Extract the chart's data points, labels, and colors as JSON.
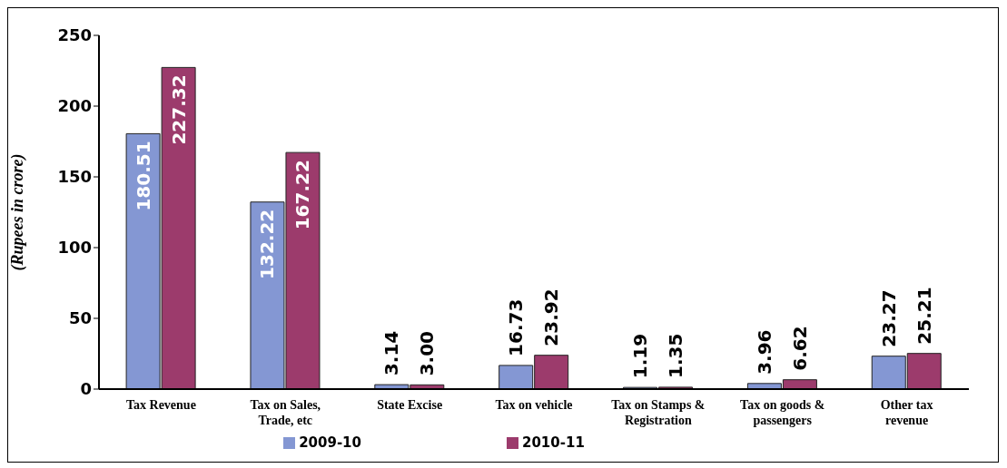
{
  "chart_data": {
    "type": "bar",
    "ylabel": "(Rupees in crore)",
    "categories": [
      "Tax Revenue",
      "Tax on Sales, Trade, etc",
      "State Excise",
      "Tax on vehicle",
      "Tax on Stamps & Registration",
      "Tax on goods & passengers",
      "Other tax revenue"
    ],
    "series": [
      {
        "name": "2009-10",
        "color": "#8497d3",
        "values": [
          180.51,
          132.22,
          3.14,
          16.73,
          1.19,
          3.96,
          23.27
        ],
        "value_labels": [
          "180.51",
          "132.22",
          "3.14",
          "16.73",
          "1.19",
          "3.96",
          "23.27"
        ]
      },
      {
        "name": "2010-11",
        "color": "#9c3b6c",
        "values": [
          227.32,
          167.22,
          3.0,
          23.92,
          1.35,
          6.62,
          25.21
        ],
        "value_labels": [
          "227.32",
          "167.22",
          "3.00",
          "23.92",
          "1.35",
          "6.62",
          "25.21"
        ]
      }
    ],
    "ylim": [
      0,
      250
    ],
    "yticks": [
      0,
      50,
      100,
      150,
      200,
      250
    ],
    "grid": false,
    "legend": "bottom"
  }
}
